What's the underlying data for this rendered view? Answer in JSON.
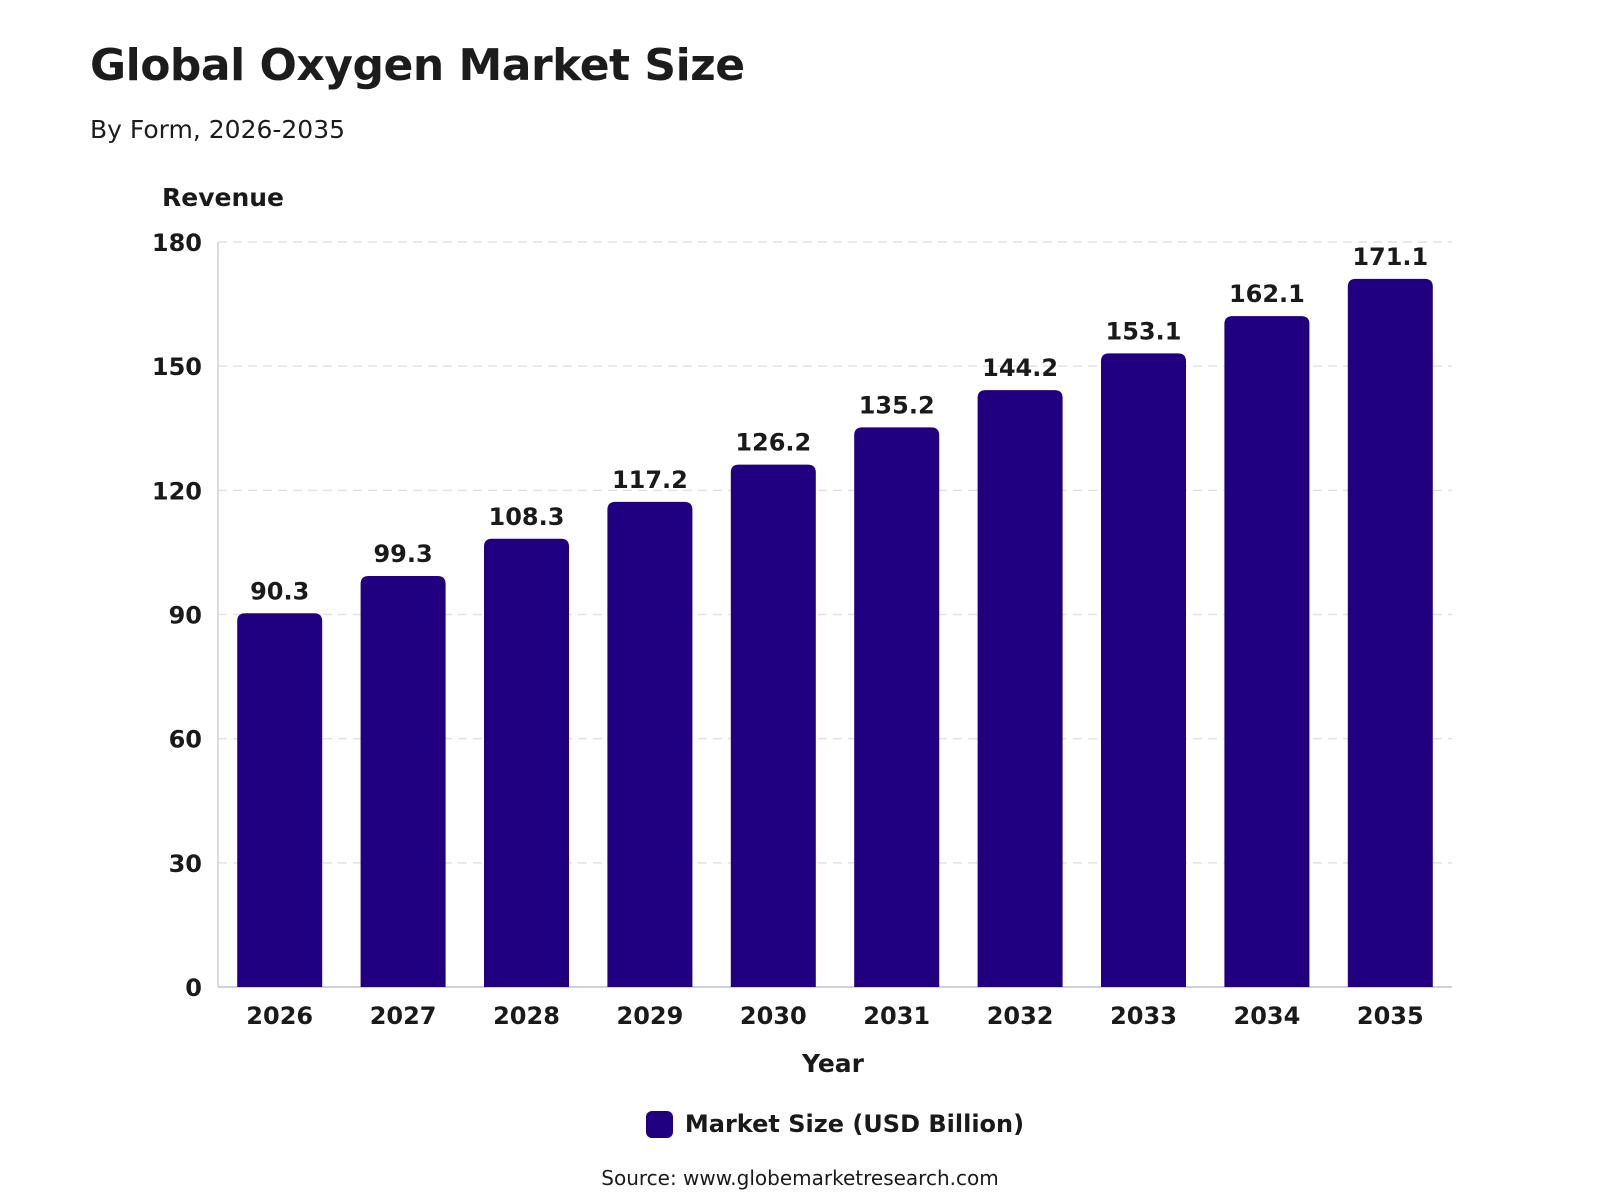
{
  "title": "Global Oxygen Market Size",
  "subtitle": "By Form, 2026-2035",
  "legend": {
    "label": "Market Size (USD Billion)",
    "color": "#210080"
  },
  "source": "Source: www.globemarketresearch.com",
  "chart_data": {
    "type": "bar",
    "title": "Global Oxygen Market Size",
    "subtitle": "By Form, 2026-2035",
    "xlabel": "Year",
    "ylabel": "Revenue",
    "categories": [
      "2026",
      "2027",
      "2028",
      "2029",
      "2030",
      "2031",
      "2032",
      "2033",
      "2034",
      "2035"
    ],
    "series": [
      {
        "name": "Market Size (USD Billion)",
        "values": [
          90.3,
          99.3,
          108.3,
          117.2,
          126.2,
          135.2,
          144.2,
          153.1,
          162.1,
          171.1
        ],
        "color": "#210080"
      }
    ],
    "ylim": [
      0,
      180
    ],
    "yticks": [
      0,
      30,
      60,
      90,
      120,
      150,
      180
    ],
    "grid": true,
    "legend_position": "bottom-center"
  }
}
